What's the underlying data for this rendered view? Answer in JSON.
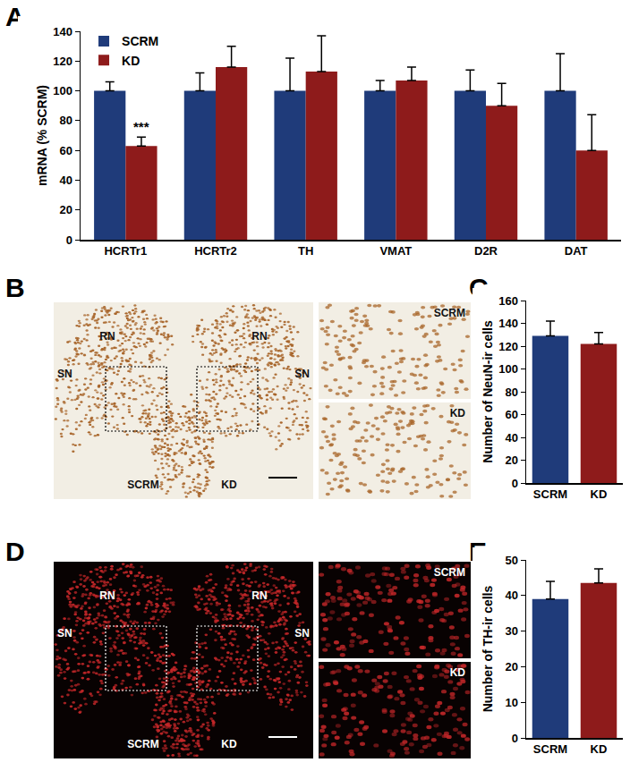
{
  "chart_data": [
    {
      "panel": "A",
      "type": "bar",
      "categories": [
        "HCRTr1",
        "HCRTr2",
        "TH",
        "VMAT",
        "D2R",
        "DAT"
      ],
      "series": [
        {
          "name": "SCRM",
          "color": "#1f3b7a",
          "values": [
            100,
            100,
            100,
            100,
            100,
            100
          ],
          "errors": [
            6,
            12,
            22,
            7,
            14,
            25
          ]
        },
        {
          "name": "KD",
          "color": "#8e1b1b",
          "values": [
            63,
            116,
            113,
            107,
            90,
            60
          ],
          "errors": [
            6,
            14,
            24,
            9,
            15,
            24
          ]
        }
      ],
      "y_label": "mRNA (% SCRM)",
      "ylim": [
        0,
        140
      ],
      "yticks": [
        0,
        20,
        40,
        60,
        80,
        100,
        120,
        140
      ],
      "legend": "top-left",
      "annotations": [
        {
          "text": "***",
          "category": "HCRTr1",
          "series": "KD"
        }
      ]
    },
    {
      "panel": "C",
      "type": "bar",
      "categories": [
        "SCRM",
        "KD"
      ],
      "values": [
        129,
        122
      ],
      "errors": [
        13,
        10
      ],
      "colors": [
        "#1f3b7a",
        "#8e1b1b"
      ],
      "y_label": "Number of NeuN-ir cells",
      "ylim": [
        0,
        160
      ],
      "yticks": [
        0,
        20,
        40,
        60,
        80,
        100,
        120,
        140,
        160
      ]
    },
    {
      "panel": "E",
      "type": "bar",
      "categories": [
        "SCRM",
        "KD"
      ],
      "values": [
        39,
        43.5
      ],
      "errors": [
        5,
        4
      ],
      "colors": [
        "#1f3b7a",
        "#8e1b1b"
      ],
      "y_label": "Number of TH-ir cells",
      "ylim": [
        0,
        50
      ],
      "yticks": [
        0,
        10,
        20,
        30,
        40,
        50
      ]
    }
  ],
  "images": [
    {
      "panel": "B",
      "regions": [
        "RN",
        "SN"
      ],
      "conditions": [
        "SCRM",
        "KD"
      ],
      "color": "#a8652a"
    },
    {
      "panel": "D",
      "regions": [
        "RN",
        "SN"
      ],
      "conditions": [
        "SCRM",
        "KD"
      ],
      "color": "#c8282a"
    }
  ]
}
